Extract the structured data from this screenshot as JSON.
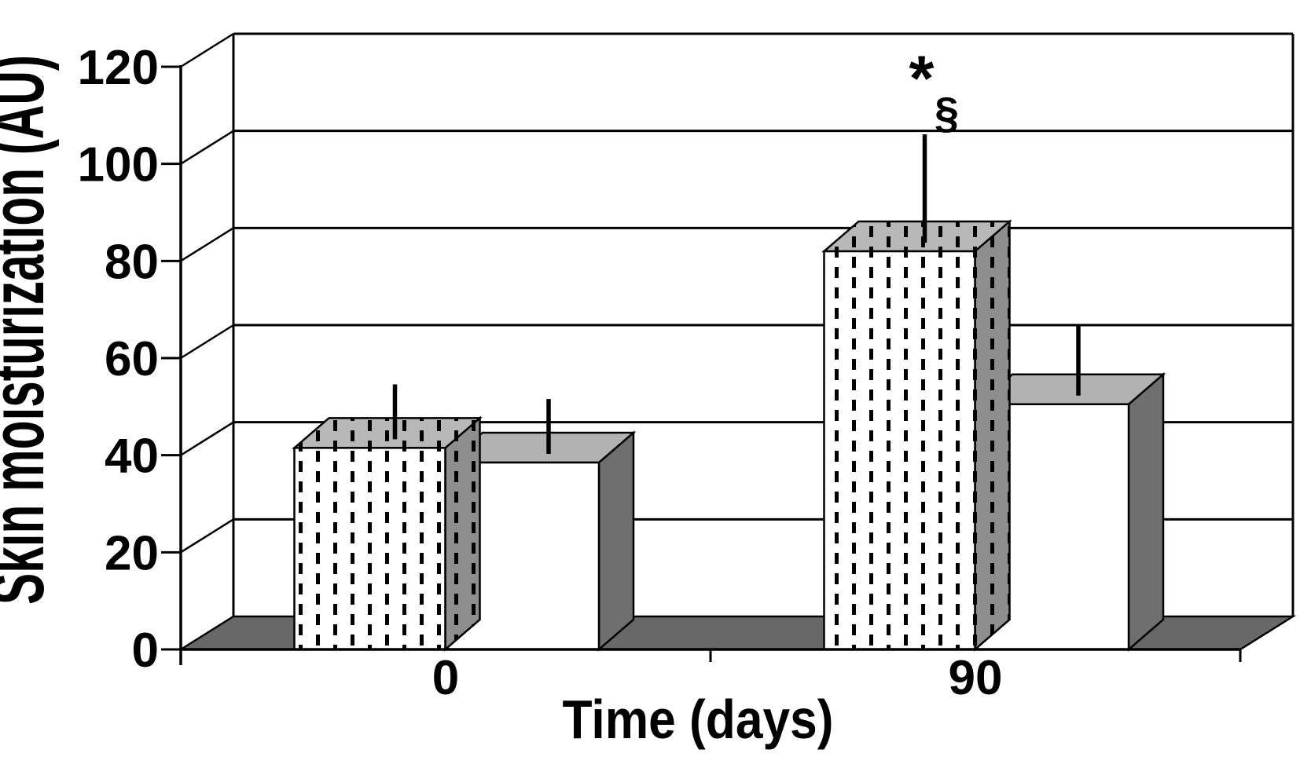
{
  "chart_data": {
    "type": "bar",
    "variant": "3d-column",
    "title": "",
    "xlabel": "Time (days)",
    "ylabel": "Skin moisturization (AU)",
    "ylim": [
      0,
      120
    ],
    "yticks": [
      0,
      20,
      40,
      60,
      80,
      100,
      120
    ],
    "categories": [
      "0",
      "90"
    ],
    "series": [
      {
        "name": "dotted-pattern bar",
        "pattern": "dotted",
        "values": [
          41.5,
          82
        ],
        "error_plus": [
          10,
          21
        ]
      },
      {
        "name": "plain-white bar",
        "pattern": "plain",
        "values": [
          38.5,
          50.5
        ],
        "error_plus": [
          10,
          13
        ]
      }
    ],
    "annotations": [
      {
        "text": "*§",
        "category": "90",
        "series": "dotted-pattern bar",
        "position": "above-error-bar"
      }
    ],
    "grid": true,
    "legend": false,
    "colors": {
      "line": "#000000",
      "wall": "#ffffff",
      "floor": "#686868",
      "plain_front": "#ffffff",
      "plain_top": "#b2b2b2",
      "plain_side": "#6f6f6f",
      "dotted_front_bg": "#ffffff",
      "dotted_top_bg": "#b8b8b8",
      "dotted_side_bg": "#8e8e8e",
      "dash": "#000000"
    }
  }
}
